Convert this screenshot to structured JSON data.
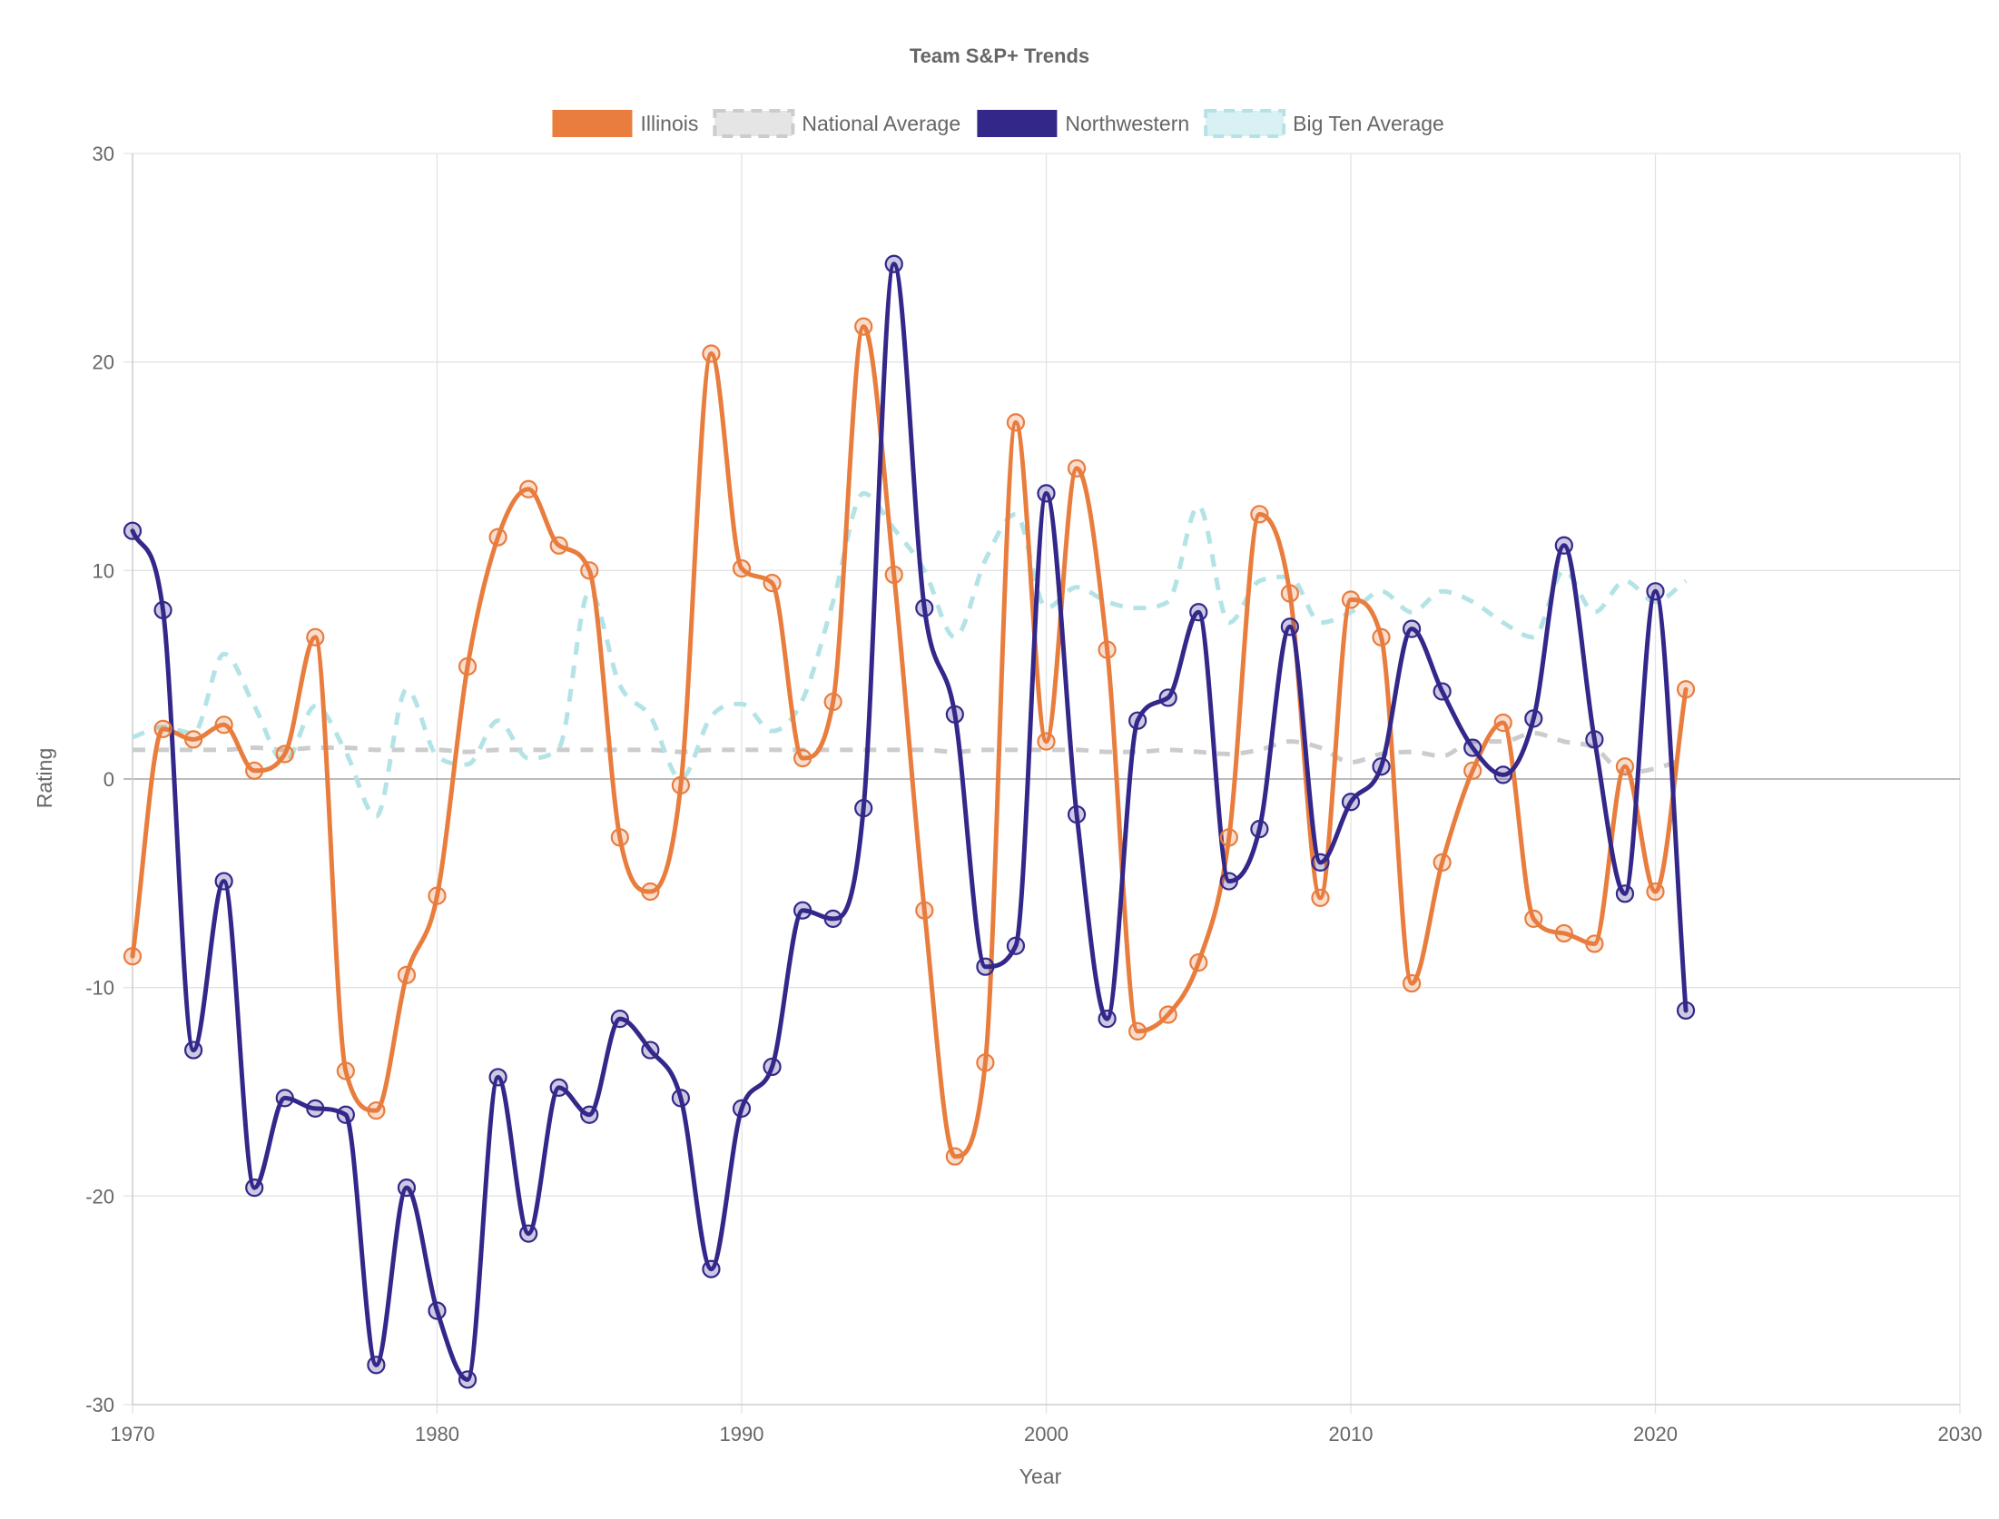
{
  "chart_data": {
    "type": "line",
    "title": "Team S&P+ Trends",
    "xlabel": "Year",
    "ylabel": "Rating",
    "xlim": [
      1970,
      2030
    ],
    "ylim": [
      -30,
      30
    ],
    "x_ticks": [
      "1970",
      "1980",
      "1990",
      "2000",
      "2010",
      "2020",
      "2030"
    ],
    "y_ticks": [
      "30",
      "20",
      "10",
      "0",
      "-10",
      "-20",
      "-30"
    ],
    "grid": true,
    "legend_position": "top-center",
    "x": [
      1970,
      1971,
      1972,
      1973,
      1974,
      1975,
      1976,
      1977,
      1978,
      1979,
      1980,
      1981,
      1982,
      1983,
      1984,
      1985,
      1986,
      1987,
      1988,
      1989,
      1990,
      1991,
      1992,
      1993,
      1994,
      1995,
      1996,
      1997,
      1998,
      1999,
      2000,
      2001,
      2002,
      2003,
      2004,
      2005,
      2006,
      2007,
      2008,
      2009,
      2010,
      2011,
      2012,
      2013,
      2014,
      2015,
      2016,
      2017,
      2018,
      2019,
      2020,
      2021
    ],
    "series": [
      {
        "name": "Illinois",
        "color": "#e87d3e",
        "dashed": false,
        "markers": true,
        "values": [
          -8.5,
          2.4,
          1.9,
          2.6,
          0.4,
          1.2,
          6.8,
          -14.0,
          -15.9,
          -9.4,
          -5.6,
          5.4,
          11.6,
          13.9,
          11.2,
          10.0,
          -2.8,
          -5.4,
          -0.3,
          20.4,
          10.1,
          9.4,
          1.0,
          3.7,
          21.7,
          9.8,
          -6.3,
          -18.1,
          -13.6,
          17.1,
          1.8,
          14.9,
          6.2,
          -12.1,
          -11.3,
          -8.8,
          -2.8,
          12.7,
          8.9,
          -5.7,
          8.6,
          6.8,
          -9.8,
          -4.0,
          0.4,
          2.7,
          -6.7,
          -7.4,
          -7.9,
          0.6,
          -5.4,
          4.3
        ]
      },
      {
        "name": "National Average",
        "color": "#cccccc",
        "dashed": true,
        "markers": false,
        "values": [
          1.4,
          1.4,
          1.4,
          1.4,
          1.5,
          1.4,
          1.5,
          1.5,
          1.4,
          1.4,
          1.4,
          1.3,
          1.4,
          1.4,
          1.4,
          1.4,
          1.4,
          1.4,
          1.3,
          1.4,
          1.4,
          1.4,
          1.4,
          1.4,
          1.4,
          1.4,
          1.4,
          1.3,
          1.4,
          1.4,
          1.4,
          1.4,
          1.3,
          1.3,
          1.4,
          1.3,
          1.2,
          1.4,
          1.8,
          1.5,
          0.8,
          1.2,
          1.3,
          1.1,
          1.8,
          1.8,
          2.2,
          1.8,
          1.5,
          0.3,
          0.5,
          1.0
        ]
      },
      {
        "name": "Northwestern",
        "color": "#33288a",
        "dashed": false,
        "markers": true,
        "values": [
          11.9,
          8.1,
          -13.0,
          -4.9,
          -19.6,
          -15.3,
          -15.8,
          -16.1,
          -28.1,
          -19.6,
          -25.5,
          -28.8,
          -14.3,
          -21.8,
          -14.8,
          -16.1,
          -11.5,
          -13.0,
          -15.3,
          -23.5,
          -15.8,
          -13.8,
          -6.3,
          -6.7,
          -1.4,
          24.7,
          8.2,
          3.1,
          -9.0,
          -8.0,
          13.7,
          -1.7,
          -11.5,
          2.8,
          3.9,
          8.0,
          -4.9,
          -2.4,
          7.3,
          -4.0,
          -1.1,
          0.6,
          7.2,
          4.2,
          1.5,
          0.2,
          2.9,
          11.2,
          1.9,
          -5.5,
          9.0,
          -11.1
        ]
      },
      {
        "name": "Big Ten Average",
        "color": "#b4e3e6",
        "dashed": true,
        "markers": false,
        "values": [
          2.0,
          2.5,
          2.2,
          6.0,
          3.5,
          0.8,
          3.5,
          1.3,
          -1.8,
          4.3,
          1.1,
          0.7,
          2.8,
          1.0,
          1.5,
          9.0,
          4.5,
          3.0,
          0.0,
          3.0,
          3.6,
          2.3,
          3.8,
          8.5,
          13.7,
          12.0,
          10.0,
          6.8,
          10.5,
          12.7,
          8.2,
          9.2,
          8.5,
          8.2,
          8.5,
          13.1,
          7.5,
          9.5,
          9.7,
          7.5,
          8.0,
          9.0,
          8.0,
          9.0,
          8.5,
          7.5,
          6.8,
          10.0,
          8.0,
          9.5,
          8.5,
          9.5
        ]
      }
    ]
  }
}
